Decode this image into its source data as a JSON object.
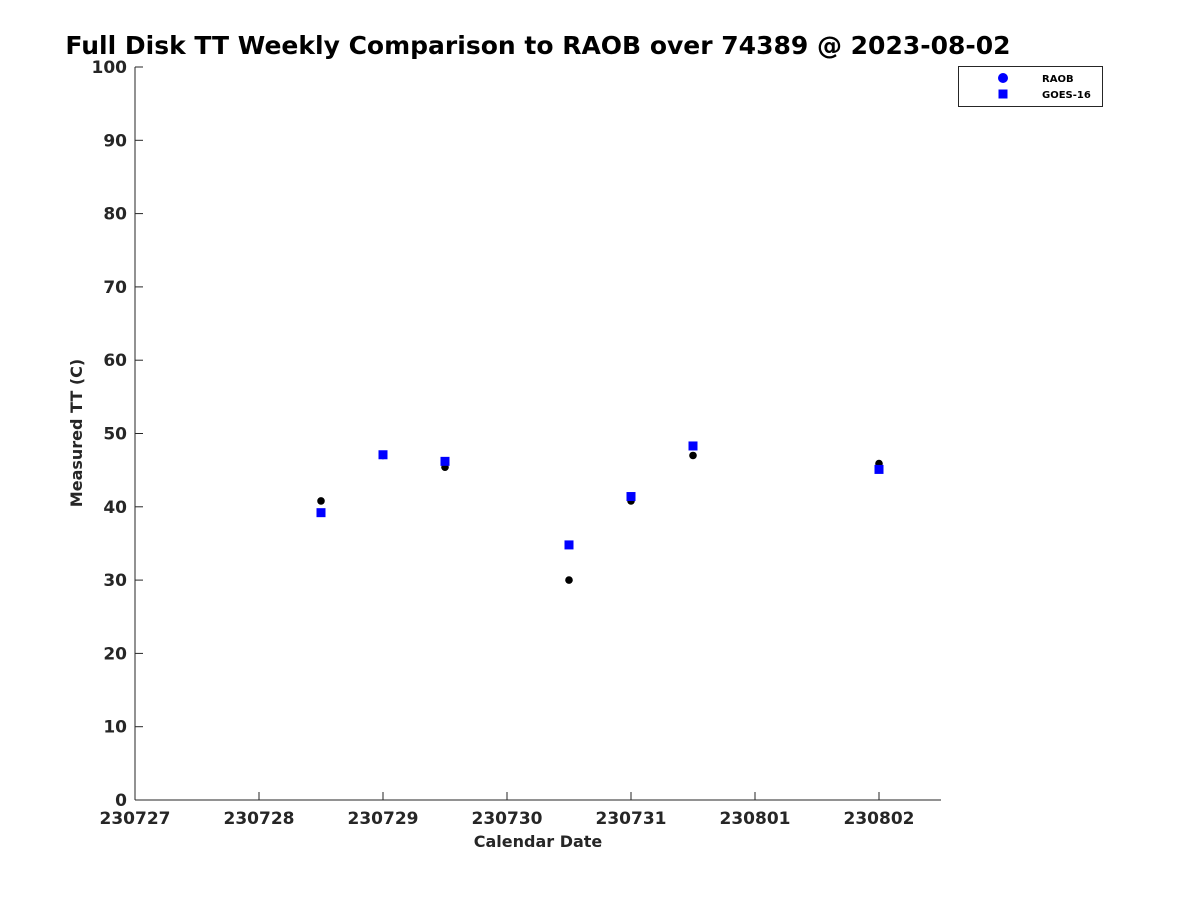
{
  "chart_data": {
    "type": "scatter",
    "title": "Full Disk TT Weekly Comparison to RAOB over 74389 @ 2023-08-02",
    "xlabel": "Calendar Date",
    "ylabel": "Measured TT (C)",
    "x_tick_labels": [
      "230727",
      "230728",
      "230729",
      "230730",
      "230731",
      "230801",
      "230802"
    ],
    "xlim": [
      "2023-07-27",
      "2023-08-02 12:00"
    ],
    "ylim": [
      0,
      100
    ],
    "y_ticks": [
      0,
      10,
      20,
      30,
      40,
      50,
      60,
      70,
      80,
      90,
      100
    ],
    "grid": false,
    "legend_position": "top-right",
    "series": [
      {
        "name": "RAOB",
        "marker": "circle",
        "color": "#000000",
        "legend_color": "#0000ff",
        "points": [
          {
            "x": "2023-07-28 12:00",
            "y": 40.8
          },
          {
            "x": "2023-07-29 00:00",
            "y": 47.0
          },
          {
            "x": "2023-07-29 12:00",
            "y": 45.4
          },
          {
            "x": "2023-07-30 12:00",
            "y": 30.0
          },
          {
            "x": "2023-07-31 00:00",
            "y": 40.8
          },
          {
            "x": "2023-07-31 12:00",
            "y": 47.0
          },
          {
            "x": "2023-08-02 00:00",
            "y": 45.9
          }
        ]
      },
      {
        "name": "GOES-16",
        "marker": "square",
        "color": "#0000ff",
        "legend_color": "#0000ff",
        "points": [
          {
            "x": "2023-07-28 12:00",
            "y": 39.2
          },
          {
            "x": "2023-07-29 00:00",
            "y": 47.1
          },
          {
            "x": "2023-07-29 12:00",
            "y": 46.2
          },
          {
            "x": "2023-07-30 12:00",
            "y": 34.8
          },
          {
            "x": "2023-07-31 00:00",
            "y": 41.4
          },
          {
            "x": "2023-07-31 12:00",
            "y": 48.3
          },
          {
            "x": "2023-08-02 00:00",
            "y": 45.1
          }
        ]
      }
    ]
  }
}
